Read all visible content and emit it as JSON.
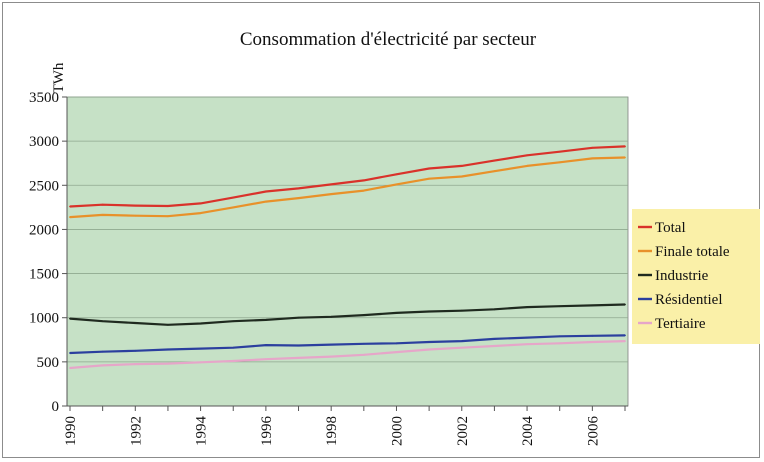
{
  "chart_data": {
    "type": "line",
    "title": "Consommation d'électricité par secteur",
    "ylabel": "TWh",
    "xlabel": "",
    "ylim": [
      0,
      3500
    ],
    "xlim": [
      1990,
      2007
    ],
    "y_ticks": [
      "0",
      "500",
      "1000",
      "1500",
      "2000",
      "2500",
      "3000",
      "3500"
    ],
    "x_ticks": [
      "1990",
      "1992",
      "1994",
      "1996",
      "1998",
      "2000",
      "2002",
      "2004",
      "2006"
    ],
    "grid": true,
    "legend_position": "right",
    "plot_background": "#c6e1c6",
    "legend_background": "#faf0a8",
    "x": [
      1990,
      1991,
      1992,
      1993,
      1994,
      1995,
      1996,
      1997,
      1998,
      1999,
      2000,
      2001,
      2002,
      2003,
      2004,
      2005,
      2006,
      2007
    ],
    "series": [
      {
        "name": "Total",
        "color": "#d9322a",
        "values": [
          2260,
          2280,
          2270,
          2265,
          2295,
          2360,
          2430,
          2465,
          2510,
          2555,
          2625,
          2690,
          2720,
          2780,
          2840,
          2880,
          2925,
          2940
        ]
      },
      {
        "name": "Finale totale",
        "color": "#e8912a",
        "values": [
          2140,
          2165,
          2155,
          2150,
          2185,
          2250,
          2315,
          2355,
          2400,
          2440,
          2510,
          2575,
          2600,
          2660,
          2720,
          2760,
          2805,
          2815
        ]
      },
      {
        "name": "Industrie",
        "color": "#1f2a1f",
        "values": [
          990,
          960,
          940,
          920,
          935,
          960,
          975,
          1000,
          1010,
          1030,
          1055,
          1070,
          1080,
          1095,
          1120,
          1130,
          1140,
          1150
        ]
      },
      {
        "name": "Résidentiel",
        "color": "#2b3f9e",
        "values": [
          600,
          615,
          625,
          640,
          650,
          660,
          690,
          685,
          695,
          705,
          710,
          725,
          735,
          760,
          775,
          790,
          795,
          800
        ]
      },
      {
        "name": "Tertiaire",
        "color": "#e6a6c9",
        "values": [
          430,
          460,
          475,
          480,
          495,
          510,
          530,
          545,
          560,
          580,
          610,
          640,
          660,
          680,
          700,
          710,
          725,
          735
        ]
      }
    ]
  }
}
